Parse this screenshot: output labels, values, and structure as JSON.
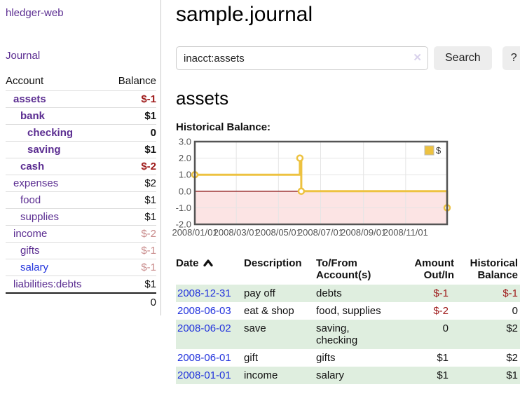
{
  "app": {
    "brand": "hledger-web",
    "journal_link": "Journal"
  },
  "colors": {
    "link_purple": "#5b2d91",
    "link_blue": "#2233dd",
    "neg_strong": "#9e1a1a",
    "neg_soft": "#c88a8a",
    "row_green": "#dfeedf",
    "series_yellow": "#edc240"
  },
  "sidebar": {
    "headers": {
      "account": "Account",
      "balance": "Balance"
    },
    "accounts": [
      {
        "name": "assets",
        "balance": "$-1",
        "indent": 1,
        "bold": true,
        "neg": "strong",
        "link": "purple"
      },
      {
        "name": "bank",
        "balance": "$1",
        "indent": 2,
        "bold": true,
        "neg": null,
        "link": "purple"
      },
      {
        "name": "checking",
        "balance": "0",
        "indent": 3,
        "bold": true,
        "neg": null,
        "link": "purple"
      },
      {
        "name": "saving",
        "balance": "$1",
        "indent": 3,
        "bold": true,
        "neg": null,
        "link": "purple"
      },
      {
        "name": "cash",
        "balance": "$-2",
        "indent": 2,
        "bold": true,
        "neg": "strong",
        "link": "purple"
      },
      {
        "name": "expenses",
        "balance": "$2",
        "indent": 1,
        "bold": false,
        "neg": null,
        "link": "purple"
      },
      {
        "name": "food",
        "balance": "$1",
        "indent": 2,
        "bold": false,
        "neg": null,
        "link": "purple"
      },
      {
        "name": "supplies",
        "balance": "$1",
        "indent": 2,
        "bold": false,
        "neg": null,
        "link": "purple"
      },
      {
        "name": "income",
        "balance": "$-2",
        "indent": 1,
        "bold": false,
        "neg": "soft",
        "link": "purple"
      },
      {
        "name": "gifts",
        "balance": "$-1",
        "indent": 2,
        "bold": false,
        "neg": "soft",
        "link": "purple"
      },
      {
        "name": "salary",
        "balance": "$-1",
        "indent": 2,
        "bold": false,
        "neg": "soft",
        "link": "blue"
      },
      {
        "name": "liabilities:debts",
        "balance": "$1",
        "indent": 1,
        "bold": false,
        "neg": null,
        "link": "purple"
      }
    ],
    "total": "0"
  },
  "header": {
    "title": "sample.journal"
  },
  "search": {
    "value": "inacct:assets",
    "clear_icon": "✕",
    "button_label": "Search",
    "help_label": "?"
  },
  "account_page": {
    "heading": "assets",
    "chart_label": "Historical Balance:"
  },
  "chart_data": {
    "type": "line",
    "step": true,
    "title": "Historical Balance",
    "legend": [
      {
        "label": "$",
        "color": "#edc240"
      }
    ],
    "legend_position": "top-right",
    "x_ticks": [
      "2008/01/01",
      "2008/03/01",
      "2008/05/01",
      "2008/07/01",
      "2008/09/01",
      "2008/11/01"
    ],
    "x_tick_days": [
      0,
      60,
      121,
      182,
      244,
      305
    ],
    "x_range_days": [
      0,
      365
    ],
    "y_ticks": [
      3.0,
      2.0,
      1.0,
      0.0,
      -1.0,
      -2.0
    ],
    "ylim": [
      -2,
      3
    ],
    "points": [
      {
        "date": "2008/01/01",
        "day": 0,
        "value": 1
      },
      {
        "date": "2008/06/01",
        "day": 152,
        "value": 2
      },
      {
        "date": "2008/06/03",
        "day": 154,
        "value": 0
      },
      {
        "date": "2008/12/31",
        "day": 365,
        "value": -1
      }
    ],
    "series_color": "#edc240",
    "marker_fill": "#ffffff",
    "grid": true,
    "grid_color": "#e5e5e5",
    "frame_color": "#545454",
    "tick_label_color": "#545454",
    "zero_line_color": "#8b1414",
    "negative_fill": "#fce4e4"
  },
  "register": {
    "columns": [
      {
        "label": "Date",
        "sorted": "asc"
      },
      {
        "label": "Description"
      },
      {
        "label": "To/From Account(s)"
      },
      {
        "label": "Amount Out/In"
      },
      {
        "label": "Historical Balance"
      }
    ],
    "rows": [
      {
        "date": "2008-12-31",
        "description": "pay off",
        "accounts": "debts",
        "amount": "$-1",
        "amount_neg": true,
        "balance": "$-1",
        "balance_neg": true,
        "shade": true
      },
      {
        "date": "2008-06-03",
        "description": "eat & shop",
        "accounts": "food, supplies",
        "amount": "$-2",
        "amount_neg": true,
        "balance": "0",
        "balance_neg": false,
        "shade": false
      },
      {
        "date": "2008-06-02",
        "description": "save",
        "accounts": "saving, checking",
        "amount": "0",
        "amount_neg": false,
        "balance": "$2",
        "balance_neg": false,
        "shade": true
      },
      {
        "date": "2008-06-01",
        "description": "gift",
        "accounts": "gifts",
        "amount": "$1",
        "amount_neg": false,
        "balance": "$2",
        "balance_neg": false,
        "shade": false
      },
      {
        "date": "2008-01-01",
        "description": "income",
        "accounts": "salary",
        "amount": "$1",
        "amount_neg": false,
        "balance": "$1",
        "balance_neg": false,
        "shade": true
      }
    ]
  }
}
